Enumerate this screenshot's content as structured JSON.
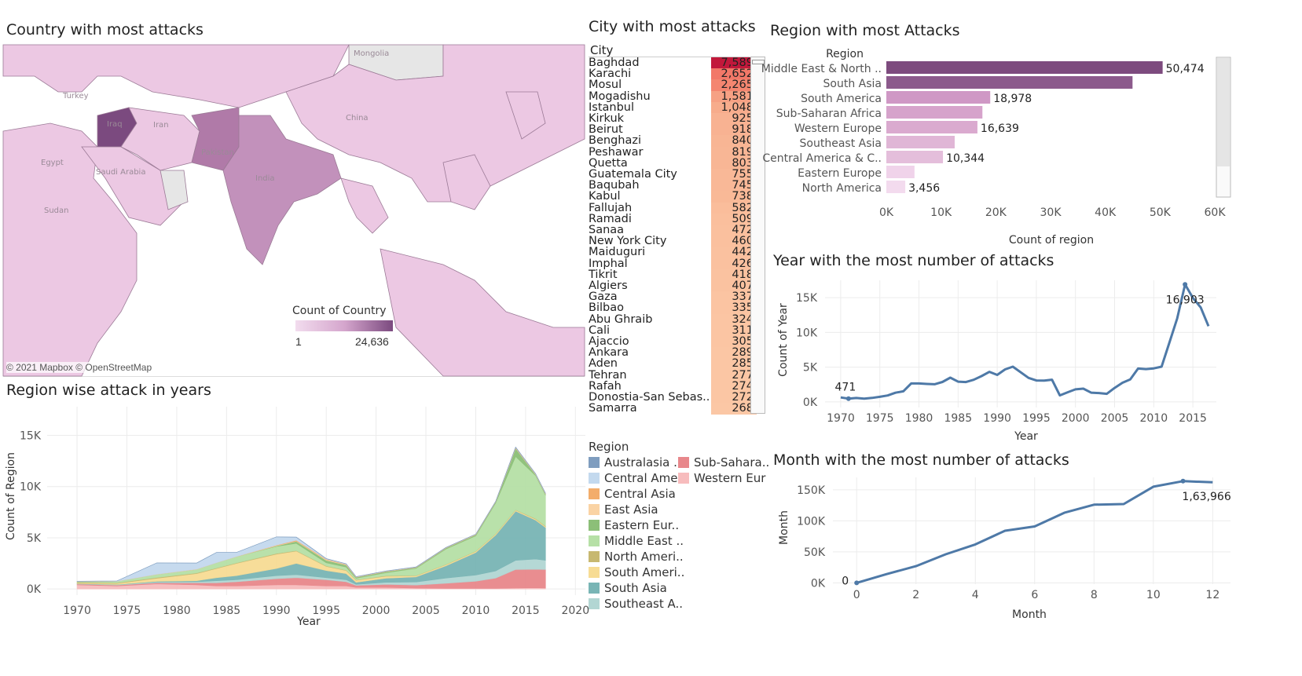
{
  "titles": {
    "country": "Country with most attacks",
    "city": "City with most attacks",
    "region_bar": "Region with most Attacks",
    "region_area": "Region wise attack in years",
    "year": "Year with the most number of attacks",
    "month": "Month with the most number of attacks"
  },
  "map": {
    "attribution": "© 2021 Mapbox © OpenStreetMap",
    "legend_title": "Count of Country",
    "legend_min": "1",
    "legend_max": "24,636",
    "place_labels": [
      "Mongolia",
      "Turkey",
      "Iran",
      "China",
      "Egypt",
      "Saudi Arabia",
      "Pakistan",
      "India",
      "Sudan",
      "Iraq"
    ],
    "colors": {
      "low": "#ecc8e3",
      "mid": "#b07aa8",
      "high": "#7b4a7f"
    }
  },
  "city_table": {
    "header": "City",
    "rows": [
      {
        "city": "Baghdad",
        "count": "7,589",
        "color": "#c2183b"
      },
      {
        "city": "Karachi",
        "count": "2,652",
        "color": "#f27868"
      },
      {
        "city": "Mosul",
        "count": "2,265",
        "color": "#f48670"
      },
      {
        "city": "Mogadishu",
        "count": "1,581",
        "color": "#f6a184"
      },
      {
        "city": "Istanbul",
        "count": "1,048",
        "color": "#f7ac8c"
      },
      {
        "city": "Kirkuk",
        "count": "925",
        "color": "#f8b292"
      },
      {
        "city": "Beirut",
        "count": "918",
        "color": "#f8b292"
      },
      {
        "city": "Benghazi",
        "count": "840",
        "color": "#f8b594"
      },
      {
        "city": "Peshawar",
        "count": "819",
        "color": "#f8b695"
      },
      {
        "city": "Quetta",
        "count": "803",
        "color": "#f8b695"
      },
      {
        "city": "Guatemala City",
        "count": "755",
        "color": "#f9b897"
      },
      {
        "city": "Baqubah",
        "count": "745",
        "color": "#f9b897"
      },
      {
        "city": "Kabul",
        "count": "738",
        "color": "#f9b997"
      },
      {
        "city": "Fallujah",
        "count": "582",
        "color": "#fabd9b"
      },
      {
        "city": "Ramadi",
        "count": "509",
        "color": "#fabf9d"
      },
      {
        "city": "Sanaa",
        "count": "472",
        "color": "#fac09e"
      },
      {
        "city": "New York City",
        "count": "460",
        "color": "#fac09e"
      },
      {
        "city": "Maiduguri",
        "count": "442",
        "color": "#fac19f"
      },
      {
        "city": "Imphal",
        "count": "426",
        "color": "#fac19f"
      },
      {
        "city": "Tikrit",
        "count": "418",
        "color": "#fac2a0"
      },
      {
        "city": "Algiers",
        "count": "407",
        "color": "#fac2a0"
      },
      {
        "city": "Gaza",
        "count": "337",
        "color": "#fbc4a2"
      },
      {
        "city": "Bilbao",
        "count": "335",
        "color": "#fbc4a2"
      },
      {
        "city": "Abu Ghraib",
        "count": "324",
        "color": "#fbc5a3"
      },
      {
        "city": "Cali",
        "count": "311",
        "color": "#fbc5a3"
      },
      {
        "city": "Ajaccio",
        "count": "305",
        "color": "#fbc5a3"
      },
      {
        "city": "Ankara",
        "count": "289",
        "color": "#fbc6a4"
      },
      {
        "city": "Aden",
        "count": "285",
        "color": "#fbc6a4"
      },
      {
        "city": "Tehran",
        "count": "277",
        "color": "#fbc6a4"
      },
      {
        "city": "Rafah",
        "count": "274",
        "color": "#fbc6a4"
      },
      {
        "city": "Donostia-San Sebas..",
        "count": "272",
        "color": "#fbc6a4"
      },
      {
        "city": "Samarra",
        "count": "268",
        "color": "#fbc7a5"
      }
    ]
  },
  "legend": {
    "title": "Region",
    "items": [
      {
        "name": "Australasia ..",
        "color": "#7f9dbf"
      },
      {
        "name": "Sub-Sahara..",
        "color": "#e8878b"
      },
      {
        "name": "Central Ame..",
        "color": "#c3d9ee"
      },
      {
        "name": "Western Eur",
        "color": "#f7bcbd"
      },
      {
        "name": "Central Asia",
        "color": "#f3ad6b"
      },
      {
        "name": "East Asia",
        "color": "#fad3a4"
      },
      {
        "name": "Eastern Eur..",
        "color": "#8cbf78"
      },
      {
        "name": "Middle East ..",
        "color": "#b6e0a6"
      },
      {
        "name": "North Ameri..",
        "color": "#c7b870"
      },
      {
        "name": "South Ameri..",
        "color": "#f7dc94"
      },
      {
        "name": "South Asia",
        "color": "#79b5b5"
      },
      {
        "name": "Southeast A..",
        "color": "#b2d6d3"
      }
    ]
  },
  "chart_data": [
    {
      "id": "region_bar",
      "type": "bar",
      "orientation": "horizontal",
      "title": "Region with most Attacks",
      "ylabel": "Region",
      "xlabel": "Count of region",
      "xlim": [
        0,
        60000
      ],
      "xticks": [
        "0K",
        "10K",
        "20K",
        "30K",
        "40K",
        "50K",
        "60K"
      ],
      "categories": [
        "Middle East & North ..",
        "South Asia",
        "South America",
        "Sub-Saharan Africa",
        "Western Europe",
        "Southeast Asia",
        "Central America & C..",
        "Eastern Europe",
        "North America"
      ],
      "values": [
        50474,
        44974,
        18978,
        17550,
        16639,
        12485,
        10344,
        5144,
        3456
      ],
      "value_labels": [
        "50,474",
        "",
        "18,978",
        "",
        "16,639",
        "",
        "10,344",
        "",
        "3,456"
      ],
      "colors": [
        "#7d4b7e",
        "#8c5a8c",
        "#cf98c5",
        "#d6a3cb",
        "#daaacf",
        "#e0b6d6",
        "#e4bedb",
        "#f0d3ea",
        "#f3dbee"
      ]
    },
    {
      "id": "year_line",
      "type": "line",
      "title": "Year with the most number of attacks",
      "xlabel": "Year",
      "ylabel": "Count of Year",
      "xlim": [
        1968,
        2018
      ],
      "ylim": [
        -800,
        17500
      ],
      "xticks": [
        "1970",
        "1975",
        "1980",
        "1985",
        "1990",
        "1995",
        "2000",
        "2005",
        "2010",
        "2015"
      ],
      "yticks": [
        "0K",
        "5K",
        "10K",
        "15K"
      ],
      "x": [
        1970,
        1971,
        1972,
        1973,
        1974,
        1975,
        1976,
        1977,
        1978,
        1979,
        1980,
        1981,
        1982,
        1983,
        1984,
        1985,
        1986,
        1987,
        1988,
        1989,
        1990,
        1991,
        1992,
        1994,
        1995,
        1996,
        1997,
        1998,
        1999,
        2000,
        2001,
        2002,
        2003,
        2004,
        2005,
        2006,
        2007,
        2008,
        2009,
        2010,
        2011,
        2012,
        2013,
        2014,
        2015,
        2016,
        2017
      ],
      "values": [
        651,
        471,
        568,
        473,
        581,
        740,
        923,
        1319,
        1526,
        2662,
        2662,
        2586,
        2544,
        2870,
        3495,
        2915,
        2860,
        3183,
        3721,
        4324,
        3887,
        4683,
        5071,
        3456,
        3081,
        3058,
        3197,
        934,
        1395,
        1814,
        1906,
        1333,
        1278,
        1166,
        2017,
        2758,
        3242,
        4805,
        4721,
        4826,
        5076,
        8522,
        12036,
        16903,
        14965,
        13587,
        10900
      ],
      "annotations": [
        {
          "x": 1971,
          "label": "471"
        },
        {
          "x": 2014,
          "label": "16,903"
        }
      ],
      "color": "#4e79a7"
    },
    {
      "id": "month_line",
      "type": "line",
      "title": "Month with the most number of attacks",
      "xlabel": "Month",
      "ylabel": "Month",
      "xlim": [
        -0.8,
        12.6
      ],
      "ylim": [
        -2000,
        170000
      ],
      "xticks": [
        "0",
        "2",
        "4",
        "6",
        "8",
        "10",
        "12"
      ],
      "yticks": [
        "0K",
        "50K",
        "100K",
        "150K"
      ],
      "x": [
        0,
        1,
        2,
        3,
        4,
        5,
        6,
        7,
        8,
        9,
        10,
        11,
        12
      ],
      "values": [
        0,
        14000,
        27000,
        46000,
        62000,
        84000,
        91000,
        113000,
        126000,
        127000,
        155000,
        163966,
        162000
      ],
      "annotations": [
        {
          "x": 0,
          "label": "0"
        },
        {
          "x": 11,
          "label": "1,63,966"
        }
      ],
      "color": "#4e79a7"
    },
    {
      "id": "region_area",
      "type": "area",
      "title": "Region wise attack in years",
      "xlabel": "Year",
      "ylabel": "Count of Region",
      "xlim": [
        1967,
        2021
      ],
      "ylim": [
        -600,
        17800
      ],
      "xticks": [
        "1970",
        "1975",
        "1980",
        "1985",
        "1990",
        "1995",
        "2000",
        "2005",
        "2010",
        "2015",
        "2020"
      ],
      "yticks": [
        "0K",
        "5K",
        "10K",
        "15K"
      ],
      "x": [
        1970,
        1974,
        1978,
        1982,
        1984,
        1986,
        1990,
        1992,
        1995,
        1997,
        1998,
        2001,
        2004,
        2007,
        2010,
        2012,
        2014,
        2016,
        2017
      ],
      "series": [
        {
          "name": "Western Eur",
          "color": "#f7bcbd",
          "values": [
            400,
            300,
            500,
            400,
            300,
            300,
            400,
            400,
            300,
            300,
            150,
            150,
            80,
            60,
            60,
            60,
            100,
            120,
            100
          ]
        },
        {
          "name": "Sub-Sahara..",
          "color": "#e8878b",
          "values": [
            80,
            80,
            100,
            200,
            300,
            400,
            600,
            700,
            600,
            400,
            200,
            300,
            300,
            500,
            700,
            1000,
            1800,
            1800,
            1800
          ]
        },
        {
          "name": "Southeast A..",
          "color": "#b2d6d3",
          "values": [
            20,
            40,
            80,
            100,
            200,
            200,
            300,
            300,
            200,
            200,
            100,
            200,
            300,
            500,
            600,
            700,
            900,
            1000,
            900
          ]
        },
        {
          "name": "South Asia",
          "color": "#79b5b5",
          "values": [
            20,
            20,
            60,
            100,
            300,
            400,
            700,
            1100,
            700,
            600,
            200,
            400,
            500,
            1200,
            2200,
            3500,
            4800,
            3800,
            3200
          ]
        },
        {
          "name": "South Ameri..",
          "color": "#f7dc94",
          "values": [
            50,
            100,
            300,
            700,
            900,
            1200,
            1400,
            1200,
            400,
            300,
            200,
            200,
            100,
            100,
            100,
            100,
            100,
            100,
            100
          ]
        },
        {
          "name": "North Ameri..",
          "color": "#c7b870",
          "values": [
            100,
            60,
            80,
            60,
            50,
            50,
            60,
            50,
            50,
            40,
            40,
            40,
            30,
            30,
            30,
            30,
            30,
            50,
            50
          ]
        },
        {
          "name": "Middle East ..",
          "color": "#b6e0a6",
          "values": [
            60,
            150,
            300,
            350,
            500,
            600,
            700,
            700,
            300,
            300,
            150,
            300,
            700,
            1500,
            1500,
            3000,
            5200,
            4200,
            3000
          ]
        },
        {
          "name": "Eastern Eur..",
          "color": "#8cbf78",
          "values": [
            0,
            0,
            0,
            0,
            0,
            0,
            50,
            200,
            250,
            200,
            100,
            100,
            80,
            100,
            100,
            100,
            800,
            100,
            100
          ]
        },
        {
          "name": "East Asia",
          "color": "#fad3a4",
          "values": [
            10,
            10,
            20,
            20,
            20,
            20,
            40,
            30,
            60,
            30,
            20,
            20,
            20,
            20,
            30,
            30,
            50,
            40,
            40
          ]
        },
        {
          "name": "Central Asia",
          "color": "#f3ad6b",
          "values": [
            0,
            0,
            0,
            0,
            0,
            0,
            30,
            80,
            50,
            40,
            20,
            20,
            10,
            20,
            20,
            20,
            30,
            20,
            20
          ]
        },
        {
          "name": "Central Ame..",
          "color": "#c3d9ee",
          "values": [
            10,
            20,
            1100,
            600,
            1000,
            400,
            800,
            300,
            50,
            50,
            20,
            20,
            20,
            10,
            10,
            10,
            20,
            20,
            20
          ]
        },
        {
          "name": "Australasia ..",
          "color": "#7f9dbf",
          "values": [
            10,
            10,
            10,
            10,
            10,
            10,
            10,
            10,
            10,
            10,
            10,
            10,
            10,
            10,
            10,
            10,
            30,
            20,
            20
          ]
        }
      ]
    }
  ]
}
